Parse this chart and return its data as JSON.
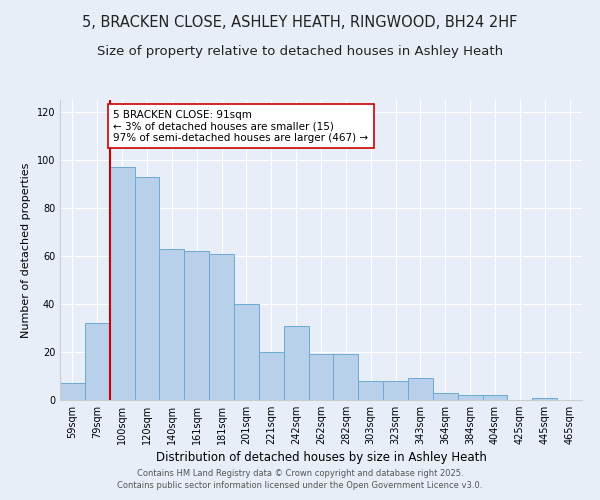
{
  "title1": "5, BRACKEN CLOSE, ASHLEY HEATH, RINGWOOD, BH24 2HF",
  "title2": "Size of property relative to detached houses in Ashley Heath",
  "xlabel": "Distribution of detached houses by size in Ashley Heath",
  "ylabel": "Number of detached properties",
  "categories": [
    "59sqm",
    "79sqm",
    "100sqm",
    "120sqm",
    "140sqm",
    "161sqm",
    "181sqm",
    "201sqm",
    "221sqm",
    "242sqm",
    "262sqm",
    "282sqm",
    "303sqm",
    "323sqm",
    "343sqm",
    "364sqm",
    "384sqm",
    "404sqm",
    "425sqm",
    "445sqm",
    "465sqm"
  ],
  "values": [
    7,
    32,
    97,
    93,
    63,
    62,
    61,
    40,
    20,
    31,
    19,
    19,
    8,
    8,
    9,
    3,
    2,
    2,
    0,
    1,
    0
  ],
  "bar_color": "#b8d0ea",
  "bar_edge_color": "#6aaad4",
  "red_line_x": 1.5,
  "red_line_color": "#cc0000",
  "annotation_text": "5 BRACKEN CLOSE: 91sqm\n← 3% of detached houses are smaller (15)\n97% of semi-detached houses are larger (467) →",
  "annotation_box_color": "#ffffff",
  "annotation_box_edge": "#cc0000",
  "ylim": [
    0,
    125
  ],
  "yticks": [
    0,
    20,
    40,
    60,
    80,
    100,
    120
  ],
  "background_color": "#e8eef8",
  "grid_color": "#ffffff",
  "footer_text": "Contains HM Land Registry data © Crown copyright and database right 2025.\nContains public sector information licensed under the Open Government Licence v3.0.",
  "title1_fontsize": 10.5,
  "title2_fontsize": 9.5,
  "xlabel_fontsize": 8.5,
  "ylabel_fontsize": 8,
  "tick_fontsize": 7,
  "annotation_fontsize": 7.5,
  "footer_fontsize": 6
}
